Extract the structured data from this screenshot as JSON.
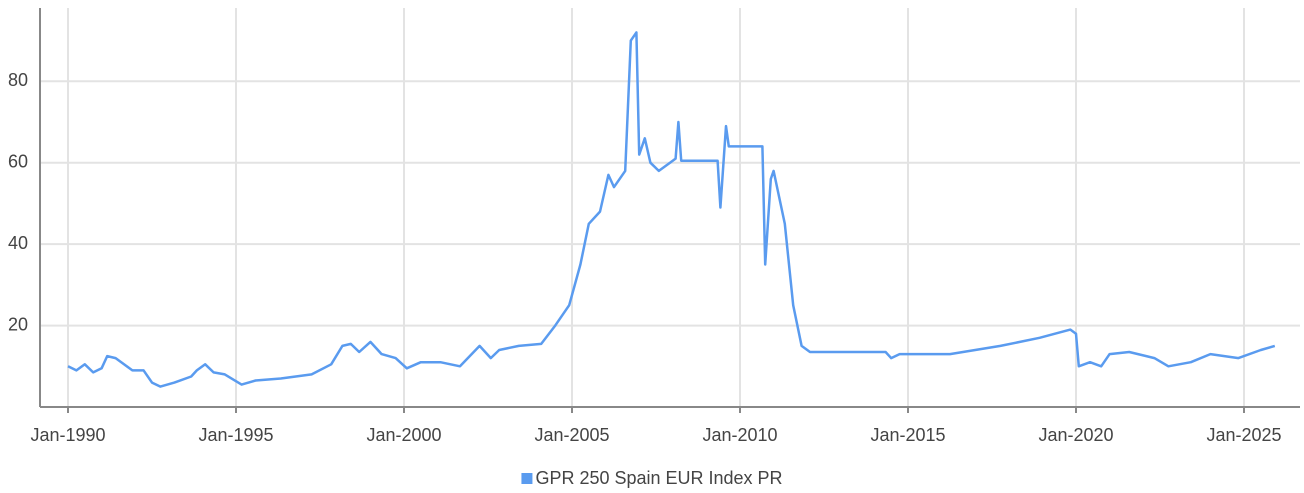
{
  "chart_data": {
    "type": "line",
    "x": [
      "1990-01",
      "1990-04",
      "1990-07",
      "1990-10",
      "1991-01",
      "1991-03",
      "1991-06",
      "1991-09",
      "1991-12",
      "1992-04",
      "1992-07",
      "1992-10",
      "1993-03",
      "1993-09",
      "1993-11",
      "1994-02",
      "1994-05",
      "1994-09",
      "1995-03",
      "1995-08",
      "1996-05",
      "1997-04",
      "1997-11",
      "1998-03",
      "1998-06",
      "1998-09",
      "1999-01",
      "1999-05",
      "1999-10",
      "2000-02",
      "2000-07",
      "2001-02",
      "2001-09",
      "2002-04",
      "2002-08",
      "2002-11",
      "2003-06",
      "2004-02",
      "2004-07",
      "2004-12",
      "2005-04",
      "2005-07",
      "2005-11",
      "2006-02",
      "2006-04",
      "2006-08",
      "2006-10",
      "2006-12",
      "2007-01",
      "2007-03",
      "2007-05",
      "2007-08",
      "2007-12",
      "2008-02",
      "2008-03",
      "2008-04",
      "2009-05",
      "2009-06",
      "2009-08",
      "2009-09",
      "2010-09",
      "2010-10",
      "2010-12",
      "2011-01",
      "2011-05",
      "2011-08",
      "2011-11",
      "2012-02",
      "2014-05",
      "2014-07",
      "2014-10",
      "2016-04",
      "2017-10",
      "2018-12",
      "2019-11",
      "2020-01",
      "2020-02",
      "2020-06",
      "2020-10",
      "2021-01",
      "2021-08",
      "2022-05",
      "2022-10",
      "2023-06",
      "2024-01",
      "2024-11",
      "2025-07",
      "2025-12"
    ],
    "series": [
      {
        "name": "GPR 250 Spain EUR Index PR",
        "color": "#5a9bef",
        "values": [
          10,
          9,
          10.5,
          8.5,
          9.5,
          12.5,
          12,
          10.5,
          9,
          9,
          6,
          5,
          6,
          7.5,
          9,
          10.5,
          8.5,
          8,
          5.5,
          6.5,
          7,
          8,
          10.5,
          15,
          15.5,
          13.5,
          16,
          13,
          12,
          9.5,
          11,
          11,
          10,
          15,
          12,
          14,
          15,
          15.5,
          20,
          25,
          35,
          45,
          48,
          57,
          54,
          58,
          90,
          92,
          62,
          66,
          60,
          58,
          60,
          61,
          70,
          60.5,
          60.5,
          49,
          69,
          64,
          64,
          35,
          56,
          58,
          45,
          25,
          15,
          13.5,
          13.5,
          12,
          13,
          13,
          15,
          17,
          19,
          18,
          10,
          11,
          10,
          13,
          13.5,
          12,
          10,
          11,
          13,
          12,
          14,
          15
        ]
      }
    ],
    "xlim": [
      "1989-03",
      "2026-09"
    ],
    "xticks": [
      {
        "value": "1990-01",
        "label": "Jan-1990"
      },
      {
        "value": "1995-01",
        "label": "Jan-1995"
      },
      {
        "value": "2000-01",
        "label": "Jan-2000"
      },
      {
        "value": "2005-01",
        "label": "Jan-2005"
      },
      {
        "value": "2010-01",
        "label": "Jan-2010"
      },
      {
        "value": "2015-01",
        "label": "Jan-2015"
      },
      {
        "value": "2020-01",
        "label": "Jan-2020"
      },
      {
        "value": "2025-01",
        "label": "Jan-2025"
      }
    ],
    "ylim": [
      0,
      98
    ],
    "yticks": [
      20,
      40,
      60,
      80
    ],
    "grid": true,
    "legend": "bottom"
  }
}
